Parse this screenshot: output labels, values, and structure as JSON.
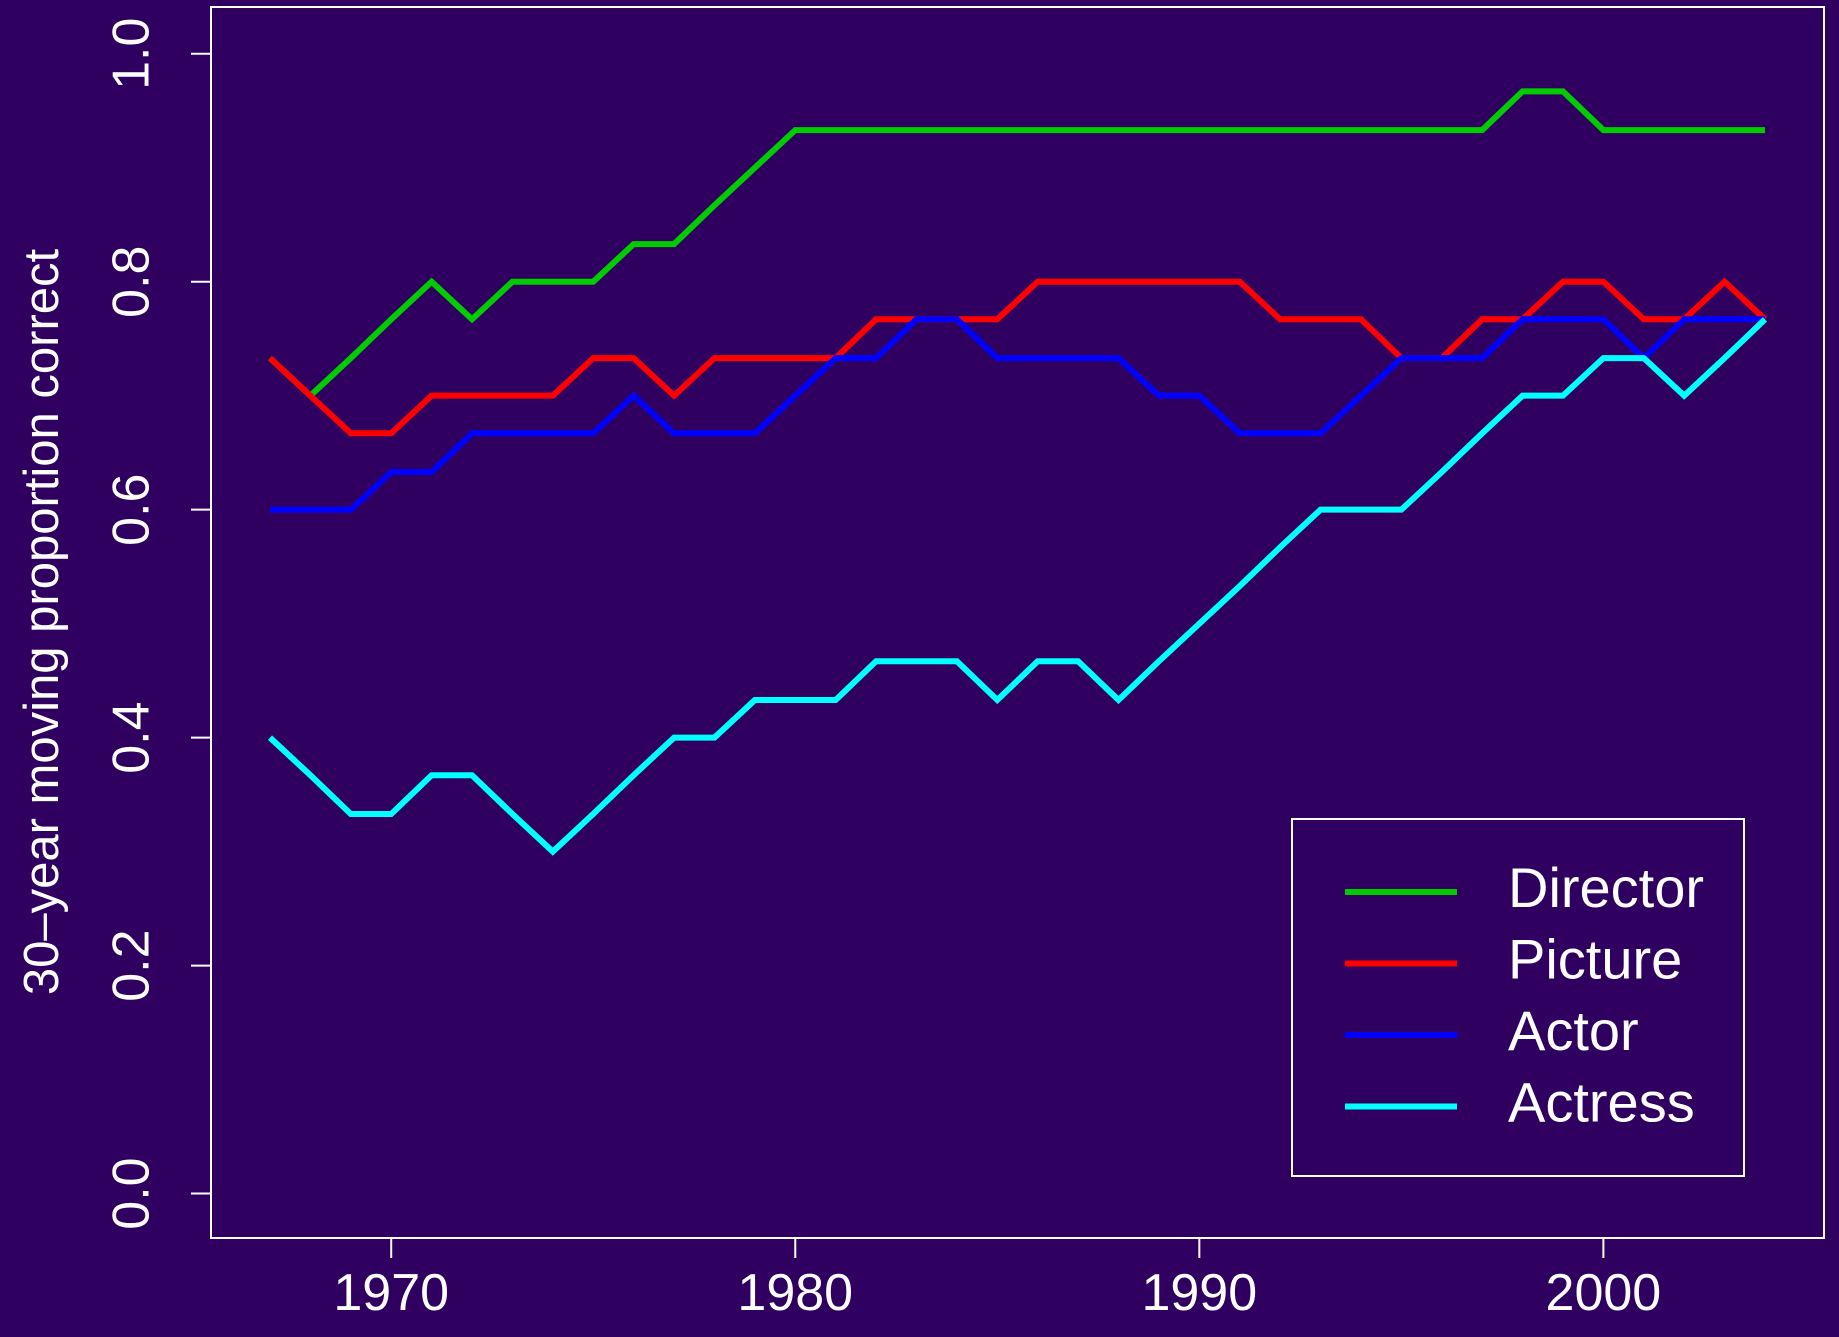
{
  "chart_data": {
    "type": "line",
    "y_label": "30–year moving proportion correct",
    "x": [
      1967,
      1968,
      1969,
      1970,
      1971,
      1972,
      1973,
      1974,
      1975,
      1976,
      1977,
      1978,
      1979,
      1980,
      1981,
      1982,
      1983,
      1984,
      1985,
      1986,
      1987,
      1988,
      1989,
      1990,
      1991,
      1992,
      1993,
      1994,
      1995,
      1996,
      1997,
      1998,
      1999,
      2000,
      2001,
      2002,
      2003,
      2004
    ],
    "series": [
      {
        "name": "Director",
        "color": "#00cc00",
        "values": [
          0.733,
          0.7,
          0.733,
          0.767,
          0.8,
          0.767,
          0.8,
          0.8,
          0.8,
          0.833,
          0.833,
          0.867,
          0.9,
          0.933,
          0.933,
          0.933,
          0.933,
          0.933,
          0.933,
          0.933,
          0.933,
          0.933,
          0.933,
          0.933,
          0.933,
          0.933,
          0.933,
          0.933,
          0.933,
          0.933,
          0.933,
          0.967,
          0.967,
          0.933,
          0.933,
          0.933,
          0.933,
          0.933
        ]
      },
      {
        "name": "Picture",
        "color": "#ff0000",
        "values": [
          0.733,
          0.7,
          0.667,
          0.667,
          0.7,
          0.7,
          0.7,
          0.7,
          0.733,
          0.733,
          0.7,
          0.733,
          0.733,
          0.733,
          0.733,
          0.767,
          0.767,
          0.767,
          0.767,
          0.8,
          0.8,
          0.8,
          0.8,
          0.8,
          0.8,
          0.767,
          0.767,
          0.767,
          0.733,
          0.733,
          0.767,
          0.767,
          0.8,
          0.8,
          0.767,
          0.767,
          0.8,
          0.767
        ]
      },
      {
        "name": "Actor",
        "color": "#0000ff",
        "values": [
          0.6,
          0.6,
          0.6,
          0.633,
          0.633,
          0.667,
          0.667,
          0.667,
          0.667,
          0.7,
          0.667,
          0.667,
          0.667,
          0.7,
          0.733,
          0.733,
          0.767,
          0.767,
          0.733,
          0.733,
          0.733,
          0.733,
          0.7,
          0.7,
          0.667,
          0.667,
          0.667,
          0.7,
          0.733,
          0.733,
          0.733,
          0.767,
          0.767,
          0.767,
          0.733,
          0.767,
          0.767,
          0.767
        ]
      },
      {
        "name": "Actress",
        "color": "#00ffff",
        "values": [
          0.4,
          0.367,
          0.333,
          0.333,
          0.367,
          0.367,
          0.333,
          0.3,
          0.333,
          0.367,
          0.4,
          0.4,
          0.433,
          0.433,
          0.433,
          0.467,
          0.467,
          0.467,
          0.433,
          0.467,
          0.467,
          0.433,
          0.467,
          0.5,
          0.533,
          0.567,
          0.6,
          0.6,
          0.6,
          0.633,
          0.667,
          0.7,
          0.7,
          0.733,
          0.733,
          0.7,
          0.733,
          0.767
        ]
      }
    ],
    "xlim": [
      1965.54,
      2005.46
    ],
    "xticks": [
      1970,
      1980,
      1990,
      2000
    ],
    "ylim": [
      -0.039,
      1.041
    ],
    "yticks": [
      {
        "value": 0,
        "label": "0.0"
      },
      0.2,
      0.4,
      0.6,
      0.8,
      {
        "value": 1,
        "label": "1.0"
      }
    ],
    "legend": "bottom-right",
    "background": "#300060"
  }
}
